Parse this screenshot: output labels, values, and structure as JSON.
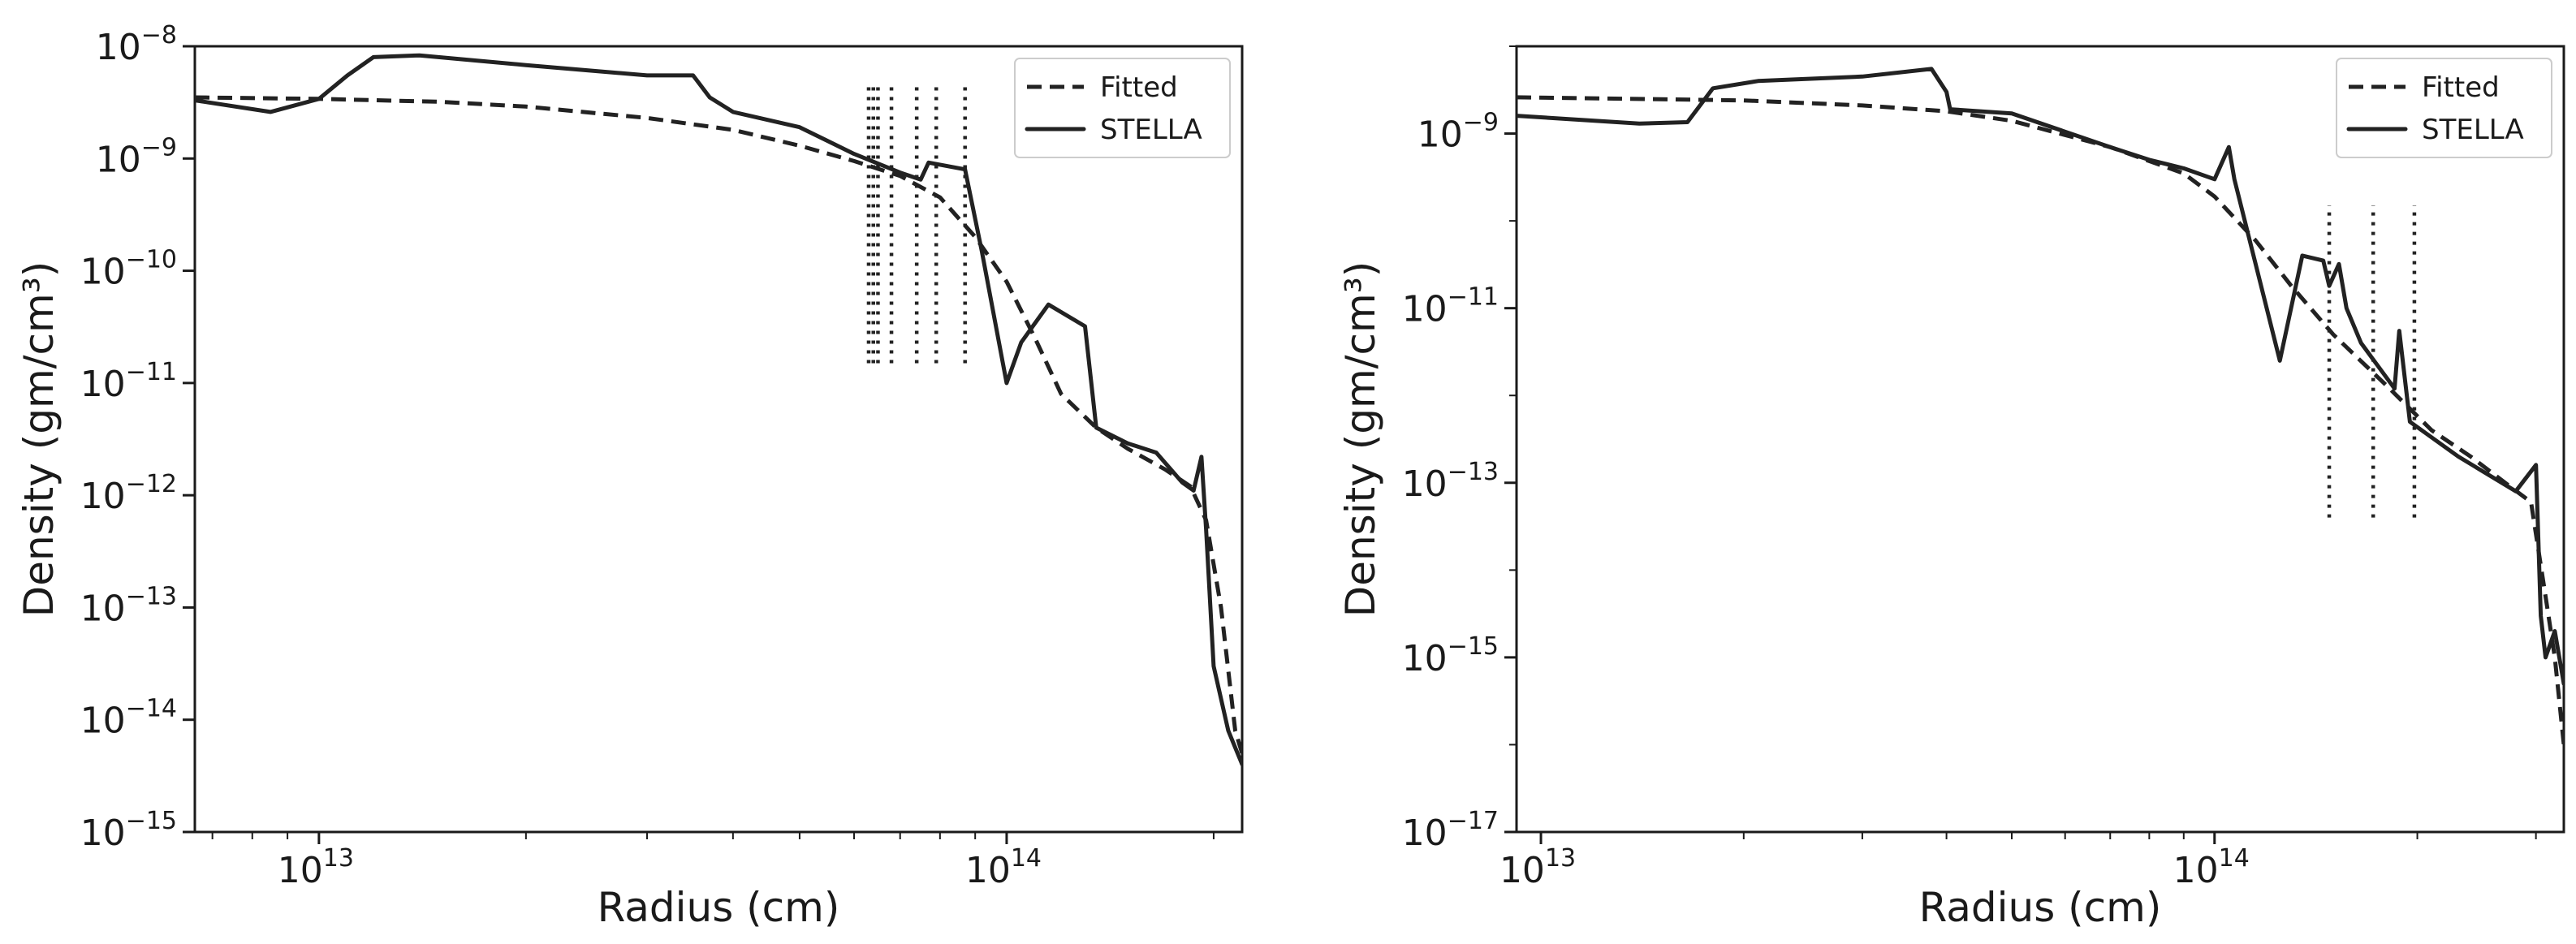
{
  "chart_data": [
    {
      "type": "line",
      "xlabel": "Radius (cm)",
      "ylabel": "Density (gm/cm³)",
      "x_scale": "log",
      "y_scale": "log",
      "xlim": [
        6600000000000.0,
        220000000000000.0
      ],
      "ylim": [
        1e-15,
        1e-08
      ],
      "xticks": [
        {
          "base": "10",
          "exp": "13",
          "value": 10000000000000.0
        },
        {
          "base": "10",
          "exp": "14",
          "value": 100000000000000.0
        }
      ],
      "yticks": [
        {
          "base": "10",
          "exp": "−8",
          "value": 1e-08
        },
        {
          "base": "10",
          "exp": "−9",
          "value": 1e-09
        },
        {
          "base": "10",
          "exp": "−10",
          "value": 1e-10
        },
        {
          "base": "10",
          "exp": "−11",
          "value": 1e-11
        },
        {
          "base": "10",
          "exp": "−12",
          "value": 1e-12
        },
        {
          "base": "10",
          "exp": "−13",
          "value": 1e-13
        },
        {
          "base": "10",
          "exp": "−14",
          "value": 1e-14
        },
        {
          "base": "10",
          "exp": "−15",
          "value": 1e-15
        }
      ],
      "legend": {
        "position": "top-right",
        "entries": [
          {
            "label": "Fitted",
            "style": "dashed"
          },
          {
            "label": "STELLA",
            "style": "solid"
          }
        ]
      },
      "series": [
        {
          "name": "Fitted",
          "style": "dashed",
          "x": [
            6600000000000.0,
            10000000000000.0,
            15000000000000.0,
            20000000000000.0,
            30000000000000.0,
            40000000000000.0,
            50000000000000.0,
            60000000000000.0,
            70000000000000.0,
            80000000000000.0,
            90000000000000.0,
            100000000000000.0,
            110000000000000.0,
            120000000000000.0,
            135000000000000.0,
            150000000000000.0,
            170000000000000.0,
            185000000000000.0,
            195000000000000.0,
            205000000000000.0,
            215000000000000.0,
            220000000000000.0
          ],
          "y": [
            3.5e-09,
            3.4e-09,
            3.2e-09,
            2.9e-09,
            2.3e-09,
            1.8e-09,
            1.3e-09,
            9.5e-10,
            7e-10,
            4.5e-10,
            2e-10,
            8e-11,
            2.5e-11,
            8e-12,
            4e-12,
            2.6e-12,
            1.7e-12,
            1.2e-12,
            6e-13,
            1e-13,
            8e-15,
            5e-15
          ]
        },
        {
          "name": "STELLA",
          "style": "solid",
          "x": [
            6600000000000.0,
            8500000000000.0,
            10000000000000.0,
            11000000000000.0,
            12000000000000.0,
            14000000000000.0,
            20000000000000.0,
            30000000000000.0,
            35000000000000.0,
            37000000000000.0,
            40000000000000.0,
            50000000000000.0,
            60000000000000.0,
            70000000000000.0,
            75000000000000.0,
            77000000000000.0,
            87000000000000.0,
            92000000000000.0,
            100000000000000.0,
            105000000000000.0,
            115000000000000.0,
            130000000000000.0,
            135000000000000.0,
            150000000000000.0,
            165000000000000.0,
            180000000000000.0,
            187000000000000.0,
            192000000000000.0,
            195000000000000.0,
            200000000000000.0,
            210000000000000.0,
            220000000000000.0
          ],
          "y": [
            3.3e-09,
            2.6e-09,
            3.4e-09,
            5.5e-09,
            8e-09,
            8.3e-09,
            6.8e-09,
            5.5e-09,
            5.5e-09,
            3.5e-09,
            2.6e-09,
            1.9e-09,
            1.1e-09,
            7.5e-10,
            6.5e-10,
            9.2e-10,
            8e-10,
            1.5e-10,
            1e-11,
            2.3e-11,
            5e-11,
            3.2e-11,
            4e-12,
            2.9e-12,
            2.4e-12,
            1.3e-12,
            1.1e-12,
            2.2e-12,
            5e-13,
            3e-14,
            8e-15,
            4e-15
          ]
        }
      ],
      "vertical_markers": {
        "style": "dotted",
        "x": [
          63000000000000.0,
          64000000000000.0,
          65000000000000.0,
          68000000000000.0,
          74000000000000.0,
          79000000000000.0,
          87000000000000.0
        ],
        "y_range": [
          1.5e-11,
          4.5e-09
        ]
      }
    },
    {
      "type": "line",
      "xlabel": "Radius (cm)",
      "ylabel": "Density (gm/cm³)",
      "x_scale": "log",
      "y_scale": "log",
      "xlim": [
        9200000000000.0,
        330000000000000.0
      ],
      "ylim": [
        1e-17,
        1e-08
      ],
      "xticks": [
        {
          "base": "10",
          "exp": "13",
          "value": 10000000000000.0
        },
        {
          "base": "10",
          "exp": "14",
          "value": 100000000000000.0
        }
      ],
      "yticks": [
        {
          "base": "10",
          "exp": "−9",
          "value": 1e-09
        },
        {
          "base": "10",
          "exp": "−11",
          "value": 1e-11
        },
        {
          "base": "10",
          "exp": "−13",
          "value": 1e-13
        },
        {
          "base": "10",
          "exp": "−15",
          "value": 1e-15
        },
        {
          "base": "10",
          "exp": "−17",
          "value": 1e-17
        }
      ],
      "legend": {
        "position": "top-right",
        "entries": [
          {
            "label": "Fitted",
            "style": "dashed"
          },
          {
            "label": "STELLA",
            "style": "solid"
          }
        ]
      },
      "series": [
        {
          "name": "Fitted",
          "style": "dashed",
          "x": [
            9200000000000.0,
            20000000000000.0,
            30000000000000.0,
            40000000000000.0,
            50000000000000.0,
            70000000000000.0,
            90000000000000.0,
            100000000000000.0,
            115000000000000.0,
            130000000000000.0,
            150000000000000.0,
            180000000000000.0,
            210000000000000.0,
            240000000000000.0,
            270000000000000.0,
            295000000000000.0,
            310000000000000.0,
            320000000000000.0,
            330000000000000.0
          ],
          "y": [
            2.6e-09,
            2.4e-09,
            2.1e-09,
            1.8e-09,
            1.4e-09,
            7e-10,
            3.5e-10,
            1.9e-10,
            6e-11,
            1.8e-11,
            5e-12,
            1.3e-12,
            4e-13,
            2e-13,
            1e-13,
            6e-14,
            5e-15,
            1e-15,
            1e-16
          ]
        },
        {
          "name": "STELLA",
          "style": "solid",
          "x": [
            9200000000000.0,
            14000000000000.0,
            16500000000000.0,
            18000000000000.0,
            21000000000000.0,
            30000000000000.0,
            38000000000000.0,
            40000000000000.0,
            40500000000000.0,
            50000000000000.0,
            70000000000000.0,
            80000000000000.0,
            90000000000000.0,
            100000000000000.0,
            105000000000000.0,
            107000000000000.0,
            125000000000000.0,
            135000000000000.0,
            145000000000000.0,
            148000000000000.0,
            153000000000000.0,
            157000000000000.0,
            165000000000000.0,
            185000000000000.0,
            188000000000000.0,
            195000000000000.0,
            230000000000000.0,
            280000000000000.0,
            300000000000000.0,
            305000000000000.0,
            310000000000000.0,
            320000000000000.0,
            330000000000000.0
          ],
          "y": [
            1.6e-09,
            1.3e-09,
            1.35e-09,
            3.3e-09,
            4e-09,
            4.5e-09,
            5.5e-09,
            3e-09,
            1.9e-09,
            1.7e-09,
            7e-10,
            5e-10,
            4e-10,
            3e-10,
            7e-10,
            3e-10,
            2.5e-12,
            4e-11,
            3.5e-11,
            1.8e-11,
            3.2e-11,
            1e-11,
            4e-12,
            1.2e-12,
            5.5e-12,
            5e-13,
            2e-13,
            8e-14,
            1.6e-13,
            3e-15,
            1e-15,
            2e-15,
            5e-16
          ]
        }
      ],
      "vertical_markers": {
        "style": "dotted",
        "x": [
          148000000000000.0,
          172000000000000.0,
          198000000000000.0
        ],
        "y_range": [
          4e-14,
          1.5e-10
        ]
      }
    }
  ]
}
